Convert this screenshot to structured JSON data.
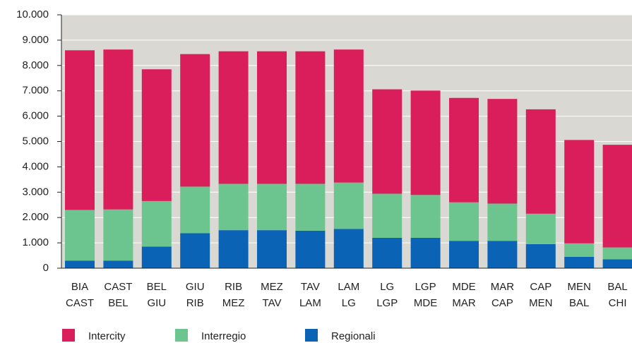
{
  "chart_data": {
    "type": "stacked_bar",
    "categories": [
      [
        "BIA",
        "CAST"
      ],
      [
        "CAST",
        "BEL"
      ],
      [
        "BEL",
        "GIU"
      ],
      [
        "GIU",
        "RIB"
      ],
      [
        "RIB",
        "MEZ"
      ],
      [
        "MEZ",
        "TAV"
      ],
      [
        "TAV",
        "LAM"
      ],
      [
        "LAM",
        "LG"
      ],
      [
        "LG",
        "LGP"
      ],
      [
        "LGP",
        "MDE"
      ],
      [
        "MDE",
        "MAR"
      ],
      [
        "MAR",
        "CAP"
      ],
      [
        "CAP",
        "MEN"
      ],
      [
        "MEN",
        "BAL"
      ],
      [
        "BAL",
        "CHI"
      ]
    ],
    "series": [
      {
        "name": "Intercity",
        "color": "#d91e5b",
        "values": [
          6300,
          6310,
          5200,
          5230,
          5230,
          5230,
          5230,
          5250,
          4120,
          4120,
          4120,
          4130,
          4120,
          4080,
          4050
        ]
      },
      {
        "name": "Interregio",
        "color": "#6cc48e",
        "values": [
          2000,
          2020,
          1800,
          1840,
          1830,
          1830,
          1850,
          1830,
          1740,
          1690,
          1520,
          1470,
          1200,
          530,
          470
        ]
      },
      {
        "name": "Regionali",
        "color": "#0b63b5",
        "values": [
          300,
          300,
          850,
          1380,
          1500,
          1500,
          1480,
          1550,
          1200,
          1200,
          1080,
          1080,
          950,
          450,
          350
        ]
      }
    ],
    "ylim": [
      0,
      10000
    ],
    "yticks": [
      0,
      {
        "value": 1000,
        "label": "1.000"
      },
      {
        "value": 2000,
        "label": "2.000"
      },
      {
        "value": 3000,
        "label": "3.000"
      },
      {
        "value": 4000,
        "label": "4.000"
      },
      {
        "value": 5000,
        "label": "5.000"
      },
      {
        "value": 6000,
        "label": "6.000"
      },
      {
        "value": 7000,
        "label": "7.000"
      },
      {
        "value": 8000,
        "label": "8.000"
      },
      {
        "value": 9000,
        "label": "9.000"
      },
      {
        "value": 10000,
        "label": "10.000"
      }
    ],
    "legend": "bottom-left"
  }
}
